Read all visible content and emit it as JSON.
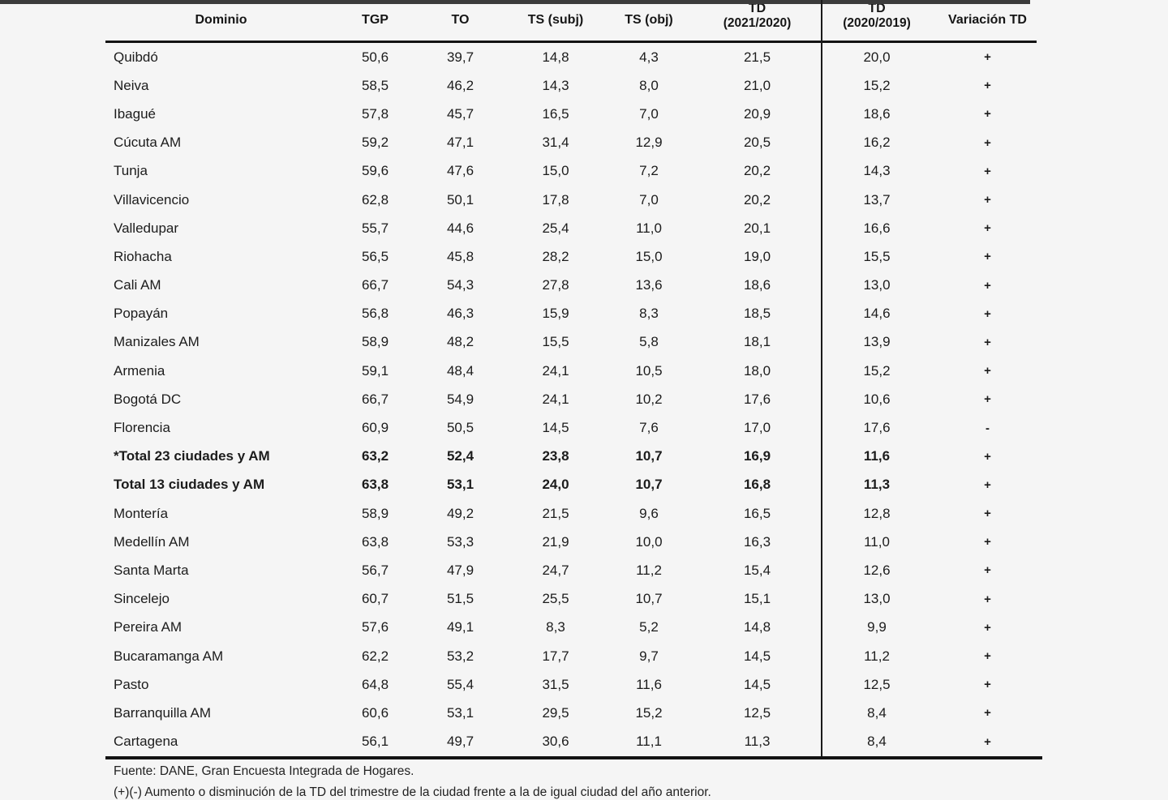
{
  "table": {
    "headers": [
      {
        "label": "Dominio"
      },
      {
        "label": "TGP"
      },
      {
        "label": "TO"
      },
      {
        "label": "TS (subj)"
      },
      {
        "label": "TS (obj)"
      },
      {
        "label": "TD",
        "sublabel": "(2021/2020)"
      },
      {
        "label": "TD",
        "sublabel": "(2020/2019)"
      },
      {
        "label": "Variación TD"
      }
    ],
    "rows": [
      {
        "dominio": "Quibdó",
        "tgp": "50,6",
        "to": "39,7",
        "ts_subj": "14,8",
        "ts_obj": "4,3",
        "td_2021_2020": "21,5",
        "td_2020_2019": "20,0",
        "variacion": "+",
        "bold": false
      },
      {
        "dominio": "Neiva",
        "tgp": "58,5",
        "to": "46,2",
        "ts_subj": "14,3",
        "ts_obj": "8,0",
        "td_2021_2020": "21,0",
        "td_2020_2019": "15,2",
        "variacion": "+",
        "bold": false
      },
      {
        "dominio": "Ibagué",
        "tgp": "57,8",
        "to": "45,7",
        "ts_subj": "16,5",
        "ts_obj": "7,0",
        "td_2021_2020": "20,9",
        "td_2020_2019": "18,6",
        "variacion": "+",
        "bold": false
      },
      {
        "dominio": "Cúcuta AM",
        "tgp": "59,2",
        "to": "47,1",
        "ts_subj": "31,4",
        "ts_obj": "12,9",
        "td_2021_2020": "20,5",
        "td_2020_2019": "16,2",
        "variacion": "+",
        "bold": false
      },
      {
        "dominio": "Tunja",
        "tgp": "59,6",
        "to": "47,6",
        "ts_subj": "15,0",
        "ts_obj": "7,2",
        "td_2021_2020": "20,2",
        "td_2020_2019": "14,3",
        "variacion": "+",
        "bold": false
      },
      {
        "dominio": "Villavicencio",
        "tgp": "62,8",
        "to": "50,1",
        "ts_subj": "17,8",
        "ts_obj": "7,0",
        "td_2021_2020": "20,2",
        "td_2020_2019": "13,7",
        "variacion": "+",
        "bold": false
      },
      {
        "dominio": "Valledupar",
        "tgp": "55,7",
        "to": "44,6",
        "ts_subj": "25,4",
        "ts_obj": "11,0",
        "td_2021_2020": "20,1",
        "td_2020_2019": "16,6",
        "variacion": "+",
        "bold": false
      },
      {
        "dominio": "Riohacha",
        "tgp": "56,5",
        "to": "45,8",
        "ts_subj": "28,2",
        "ts_obj": "15,0",
        "td_2021_2020": "19,0",
        "td_2020_2019": "15,5",
        "variacion": "+",
        "bold": false
      },
      {
        "dominio": "Cali AM",
        "tgp": "66,7",
        "to": "54,3",
        "ts_subj": "27,8",
        "ts_obj": "13,6",
        "td_2021_2020": "18,6",
        "td_2020_2019": "13,0",
        "variacion": "+",
        "bold": false
      },
      {
        "dominio": "Popayán",
        "tgp": "56,8",
        "to": "46,3",
        "ts_subj": "15,9",
        "ts_obj": "8,3",
        "td_2021_2020": "18,5",
        "td_2020_2019": "14,6",
        "variacion": "+",
        "bold": false
      },
      {
        "dominio": "Manizales AM",
        "tgp": "58,9",
        "to": "48,2",
        "ts_subj": "15,5",
        "ts_obj": "5,8",
        "td_2021_2020": "18,1",
        "td_2020_2019": "13,9",
        "variacion": "+",
        "bold": false
      },
      {
        "dominio": "Armenia",
        "tgp": "59,1",
        "to": "48,4",
        "ts_subj": "24,1",
        "ts_obj": "10,5",
        "td_2021_2020": "18,0",
        "td_2020_2019": "15,2",
        "variacion": "+",
        "bold": false
      },
      {
        "dominio": "Bogotá DC",
        "tgp": "66,7",
        "to": "54,9",
        "ts_subj": "24,1",
        "ts_obj": "10,2",
        "td_2021_2020": "17,6",
        "td_2020_2019": "10,6",
        "variacion": "+",
        "bold": false
      },
      {
        "dominio": "Florencia",
        "tgp": "60,9",
        "to": "50,5",
        "ts_subj": "14,5",
        "ts_obj": "7,6",
        "td_2021_2020": "17,0",
        "td_2020_2019": "17,6",
        "variacion": "-",
        "bold": false
      },
      {
        "dominio": "*Total 23 ciudades y AM",
        "tgp": "63,2",
        "to": "52,4",
        "ts_subj": "23,8",
        "ts_obj": "10,7",
        "td_2021_2020": "16,9",
        "td_2020_2019": "11,6",
        "variacion": "+",
        "bold": true
      },
      {
        "dominio": "Total 13 ciudades y AM",
        "tgp": "63,8",
        "to": "53,1",
        "ts_subj": "24,0",
        "ts_obj": "10,7",
        "td_2021_2020": "16,8",
        "td_2020_2019": "11,3",
        "variacion": "+",
        "bold": true
      },
      {
        "dominio": "Montería",
        "tgp": "58,9",
        "to": "49,2",
        "ts_subj": "21,5",
        "ts_obj": "9,6",
        "td_2021_2020": "16,5",
        "td_2020_2019": "12,8",
        "variacion": "+",
        "bold": false
      },
      {
        "dominio": "Medellín AM",
        "tgp": "63,8",
        "to": "53,3",
        "ts_subj": "21,9",
        "ts_obj": "10,0",
        "td_2021_2020": "16,3",
        "td_2020_2019": "11,0",
        "variacion": "+",
        "bold": false
      },
      {
        "dominio": "Santa Marta",
        "tgp": "56,7",
        "to": "47,9",
        "ts_subj": "24,7",
        "ts_obj": "11,2",
        "td_2021_2020": "15,4",
        "td_2020_2019": "12,6",
        "variacion": "+",
        "bold": false
      },
      {
        "dominio": "Sincelejo",
        "tgp": "60,7",
        "to": "51,5",
        "ts_subj": "25,5",
        "ts_obj": "10,7",
        "td_2021_2020": "15,1",
        "td_2020_2019": "13,0",
        "variacion": "+",
        "bold": false
      },
      {
        "dominio": "Pereira AM",
        "tgp": "57,6",
        "to": "49,1",
        "ts_subj": "8,3",
        "ts_obj": "5,2",
        "td_2021_2020": "14,8",
        "td_2020_2019": "9,9",
        "variacion": "+",
        "bold": false
      },
      {
        "dominio": "Bucaramanga AM",
        "tgp": "62,2",
        "to": "53,2",
        "ts_subj": "17,7",
        "ts_obj": "9,7",
        "td_2021_2020": "14,5",
        "td_2020_2019": "11,2",
        "variacion": "+",
        "bold": false
      },
      {
        "dominio": "Pasto",
        "tgp": "64,8",
        "to": "55,4",
        "ts_subj": "31,5",
        "ts_obj": "11,6",
        "td_2021_2020": "14,5",
        "td_2020_2019": "12,5",
        "variacion": "+",
        "bold": false
      },
      {
        "dominio": "Barranquilla AM",
        "tgp": "60,6",
        "to": "53,1",
        "ts_subj": "29,5",
        "ts_obj": "15,2",
        "td_2021_2020": "12,5",
        "td_2020_2019": "8,4",
        "variacion": "+",
        "bold": false
      },
      {
        "dominio": "Cartagena",
        "tgp": "56,1",
        "to": "49,7",
        "ts_subj": "30,6",
        "ts_obj": "11,1",
        "td_2021_2020": "11,3",
        "td_2020_2019": "8,4",
        "variacion": "+",
        "bold": false
      }
    ]
  },
  "footer": {
    "fuente": "Fuente: DANE, Gran Encuesta Integrada de Hogares.",
    "footnote": "(+)(-) Aumento o disminución de la TD del trimestre de la ciudad frente a la de igual ciudad del año anterior."
  }
}
